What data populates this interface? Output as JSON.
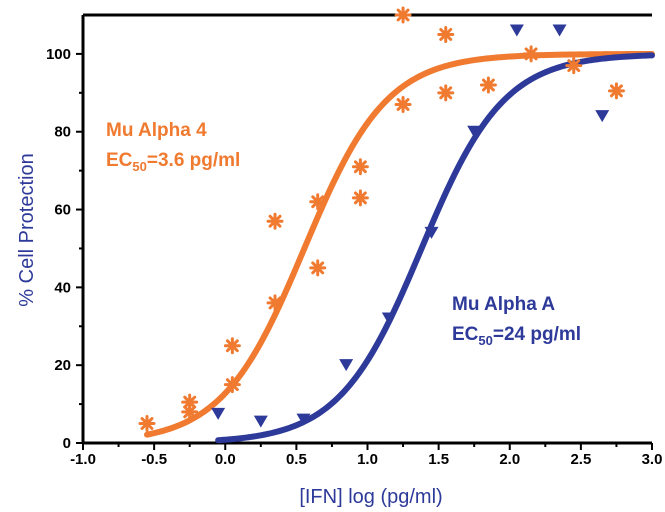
{
  "chart_data": {
    "type": "scatter",
    "xlabel": "[IFN] log (pg/ml)",
    "ylabel": "% Cell Protection",
    "xlim": [
      -1.0,
      3.0
    ],
    "ylim": [
      0,
      110
    ],
    "x_ticks": [
      "-1.0",
      "-0.5",
      "0.0",
      "0.5",
      "1.0",
      "1.5",
      "2.0",
      "2.5",
      "3.0"
    ],
    "y_ticks": [
      "0",
      "20",
      "40",
      "60",
      "80",
      "100"
    ],
    "grid": false,
    "series": [
      {
        "label_line1": "Mu Alpha 4",
        "label_ec_prefix": "EC",
        "label_ec_sub": "50",
        "label_ec_value": "=3.6 pg/ml",
        "color": "#f07a30",
        "marker": "asterisk",
        "ec50_log": 0.556,
        "hill": 1.5,
        "x": [
          -0.55,
          -0.25,
          -0.25,
          0.05,
          0.05,
          0.35,
          0.35,
          0.65,
          0.65,
          0.95,
          0.95,
          1.25,
          1.25,
          1.55,
          1.55,
          1.85,
          2.15,
          2.45,
          2.75
        ],
        "y": [
          5,
          8,
          10.5,
          15,
          25,
          36,
          57,
          45,
          62,
          63,
          71,
          87,
          110,
          90,
          105,
          92,
          100,
          97,
          90.5
        ]
      },
      {
        "label_line1": "Mu Alpha A",
        "label_ec_prefix": "EC",
        "label_ec_sub": "50",
        "label_ec_value": "=24 pg/ml",
        "color": "#2e3a9a",
        "marker": "triangle-down",
        "ec50_log": 1.38,
        "hill": 1.5,
        "x": [
          -0.05,
          0.25,
          0.55,
          0.85,
          1.15,
          1.45,
          1.75,
          2.05,
          2.35,
          2.65
        ],
        "y": [
          7.5,
          5.5,
          6,
          20,
          32,
          54,
          80,
          106,
          106,
          84
        ]
      }
    ]
  }
}
